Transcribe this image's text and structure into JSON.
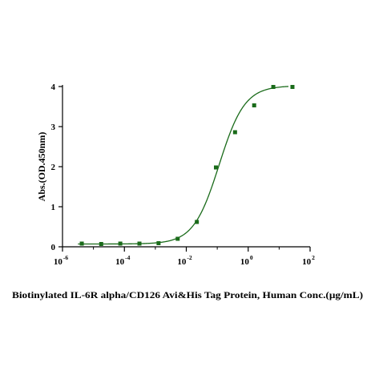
{
  "chart_data": {
    "type": "scatter",
    "title": "",
    "xlabel": "Biotinylated IL-6R alpha/CD126 Avi&His Tag Protein, Human Conc.(μg/mL)",
    "ylabel": "Abs.(OD.450nm)",
    "x_scale": "log10",
    "xlim": [
      1e-06,
      100
    ],
    "ylim": [
      0,
      4
    ],
    "x_ticks": [
      {
        "value": 1e-06,
        "base": "10",
        "exp": "-6"
      },
      {
        "value": 0.0001,
        "base": "10",
        "exp": "-4"
      },
      {
        "value": 0.01,
        "base": "10",
        "exp": "-2"
      },
      {
        "value": 1,
        "base": "10",
        "exp": "0"
      },
      {
        "value": 100,
        "base": "10",
        "exp": "2"
      }
    ],
    "y_ticks": [
      "0",
      "1",
      "2",
      "3",
      "4"
    ],
    "grid": false,
    "legend": "none",
    "series": [
      {
        "color": "#1a6b1a",
        "x": [
          4.2e-06,
          1.78e-05,
          7.37e-05,
          0.000306,
          0.00127,
          0.00527,
          0.0219,
          0.0907,
          0.376,
          1.56,
          6.47,
          26.9
        ],
        "y": [
          0.08,
          0.07,
          0.08,
          0.08,
          0.09,
          0.2,
          0.62,
          1.98,
          2.86,
          3.53,
          3.99,
          3.99
        ]
      }
    ],
    "fit_curve": {
      "color": "#1a6b1a",
      "model": "4PL",
      "bottom": 0.07,
      "top": 4.02,
      "ec50": 0.115,
      "hill": 1.05
    }
  }
}
